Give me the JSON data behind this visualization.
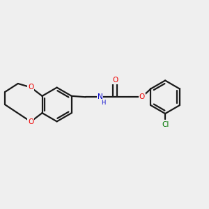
{
  "bg_color": "#efefef",
  "bond_color": "#1a1a1a",
  "o_color": "#ee0000",
  "n_color": "#0000cc",
  "cl_color": "#007700",
  "line_width": 1.6,
  "figsize": [
    3.0,
    3.0
  ],
  "dpi": 100,
  "font_size_atom": 7.5,
  "font_size_h": 6.0,
  "xlim": [
    0,
    10
  ],
  "ylim": [
    1.5,
    8.5
  ]
}
